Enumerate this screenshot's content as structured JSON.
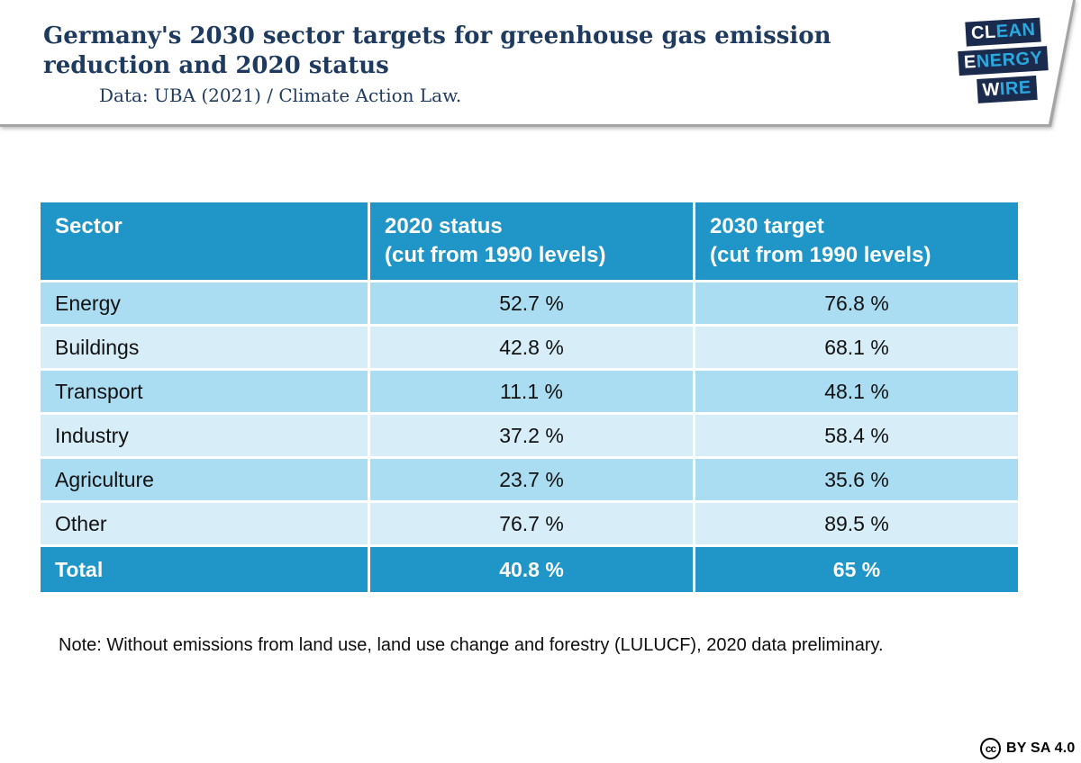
{
  "header": {
    "title": "Germany's 2030 sector targets for greenhouse gas emission reduction and 2020 status",
    "source": "Data: UBA (2021) / Climate Action Law.",
    "logo": {
      "line1_white": "CL",
      "line1_blue": "EAN",
      "line2_white": "E",
      "line2_blue": "NERGY",
      "line3_white": "W",
      "line3_blue": "IRE"
    }
  },
  "chart_data": {
    "type": "table",
    "title": "Germany's 2030 sector targets for greenhouse gas emission reduction and 2020 status",
    "source": "Data: UBA (2021) / Climate Action Law.",
    "columns": [
      {
        "label": "Sector",
        "sub": ""
      },
      {
        "label": "2020 status",
        "sub": "(cut from 1990 levels)"
      },
      {
        "label": "2030 target",
        "sub": "(cut from 1990 levels)"
      }
    ],
    "rows": [
      {
        "sector": "Energy",
        "status_2020": "52.7 %",
        "target_2030": "76.8 %"
      },
      {
        "sector": "Buildings",
        "status_2020": "42.8 %",
        "target_2030": "68.1 %"
      },
      {
        "sector": "Transport",
        "status_2020": "11.1 %",
        "target_2030": "48.1 %"
      },
      {
        "sector": "Industry",
        "status_2020": "37.2 %",
        "target_2030": "58.4 %"
      },
      {
        "sector": "Agriculture",
        "status_2020": "23.7 %",
        "target_2030": "35.6 %"
      },
      {
        "sector": "Other",
        "status_2020": "76.7 %",
        "target_2030": "89.5 %"
      }
    ],
    "total_row": {
      "sector": "Total",
      "status_2020": "40.8 %",
      "target_2030": "65 %"
    },
    "note": "Note: Without emissions from land use, land use change and forestry (LULUCF), 2020 data preliminary.",
    "layout": {
      "row_color_pattern": "alternating medium/light blue",
      "values_alignment": "center"
    }
  },
  "footer": {
    "cc_icon": "cc",
    "license": "BY SA 4.0"
  },
  "colors": {
    "header_blue": "#1f95c8",
    "row_medium_blue": "#abddf2",
    "row_light_blue": "#d7edf8",
    "title_navy": "#1e3a5e",
    "logo_navy": "#1b2b4e",
    "logo_cyan": "#29a9e0",
    "banner_edge_gray": "#a5a5a5"
  }
}
